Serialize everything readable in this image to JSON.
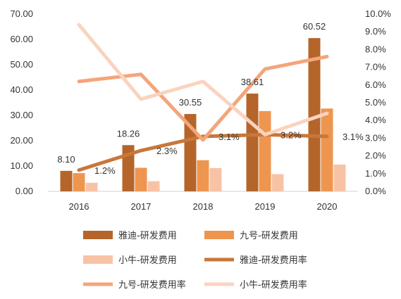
{
  "chart_data": {
    "type": "bar",
    "categories": [
      "2016",
      "2017",
      "2018",
      "2019",
      "2020"
    ],
    "ylim": [
      0,
      70
    ],
    "y2lim": [
      0,
      10
    ],
    "yticks": [
      "0.00",
      "10.00",
      "20.00",
      "30.00",
      "40.00",
      "50.00",
      "60.00",
      "70.00"
    ],
    "y2ticks": [
      "0.0%",
      "1.0%",
      "2.0%",
      "3.0%",
      "4.0%",
      "5.0%",
      "6.0%",
      "7.0%",
      "8.0%",
      "9.0%",
      "10.0%"
    ],
    "bar_series": [
      {
        "name": "雅迪-研发费用",
        "color": "#B5652A",
        "values": [
          8.1,
          18.26,
          30.55,
          38.61,
          60.52
        ],
        "labels": [
          "8.10",
          "18.26",
          "30.55",
          "38.61",
          "60.52"
        ]
      },
      {
        "name": "九号-研发费用",
        "color": "#EE9550",
        "values": [
          7.2,
          9.3,
          12.3,
          31.7,
          32.7
        ]
      },
      {
        "name": "小牛-研发费用",
        "color": "#F8C3A5",
        "values": [
          3.4,
          4.0,
          9.2,
          6.8,
          10.6
        ]
      }
    ],
    "line_series": [
      {
        "name": "雅迪-研发费用率",
        "color": "#C8773A",
        "values": [
          1.2,
          2.3,
          3.1,
          3.2,
          3.1
        ],
        "labels": [
          "1.2%",
          "2.3%",
          "3.1%",
          "3.2%",
          "3.1%"
        ]
      },
      {
        "name": "九号-研发费用率",
        "color": "#F4A57A",
        "values": [
          6.2,
          6.6,
          2.9,
          6.9,
          7.6
        ]
      },
      {
        "name": "小牛-研发费用率",
        "color": "#FAD3BF",
        "values": [
          9.4,
          5.2,
          6.2,
          3.2,
          4.4
        ]
      }
    ],
    "legend": [
      {
        "name": "雅迪-研发费用",
        "kind": "bar",
        "color": "#B5652A"
      },
      {
        "name": "九号-研发费用",
        "kind": "bar",
        "color": "#EE9550"
      },
      {
        "name": "小牛-研发费用",
        "kind": "bar",
        "color": "#F8C3A5"
      },
      {
        "name": "雅迪-研发费用率",
        "kind": "line",
        "color": "#C8773A"
      },
      {
        "name": "九号-研发费用率",
        "kind": "line",
        "color": "#F4A57A"
      },
      {
        "name": "小牛-研发费用率",
        "kind": "line",
        "color": "#FAD3BF"
      }
    ],
    "legend_position": "bottom",
    "grid": false
  }
}
